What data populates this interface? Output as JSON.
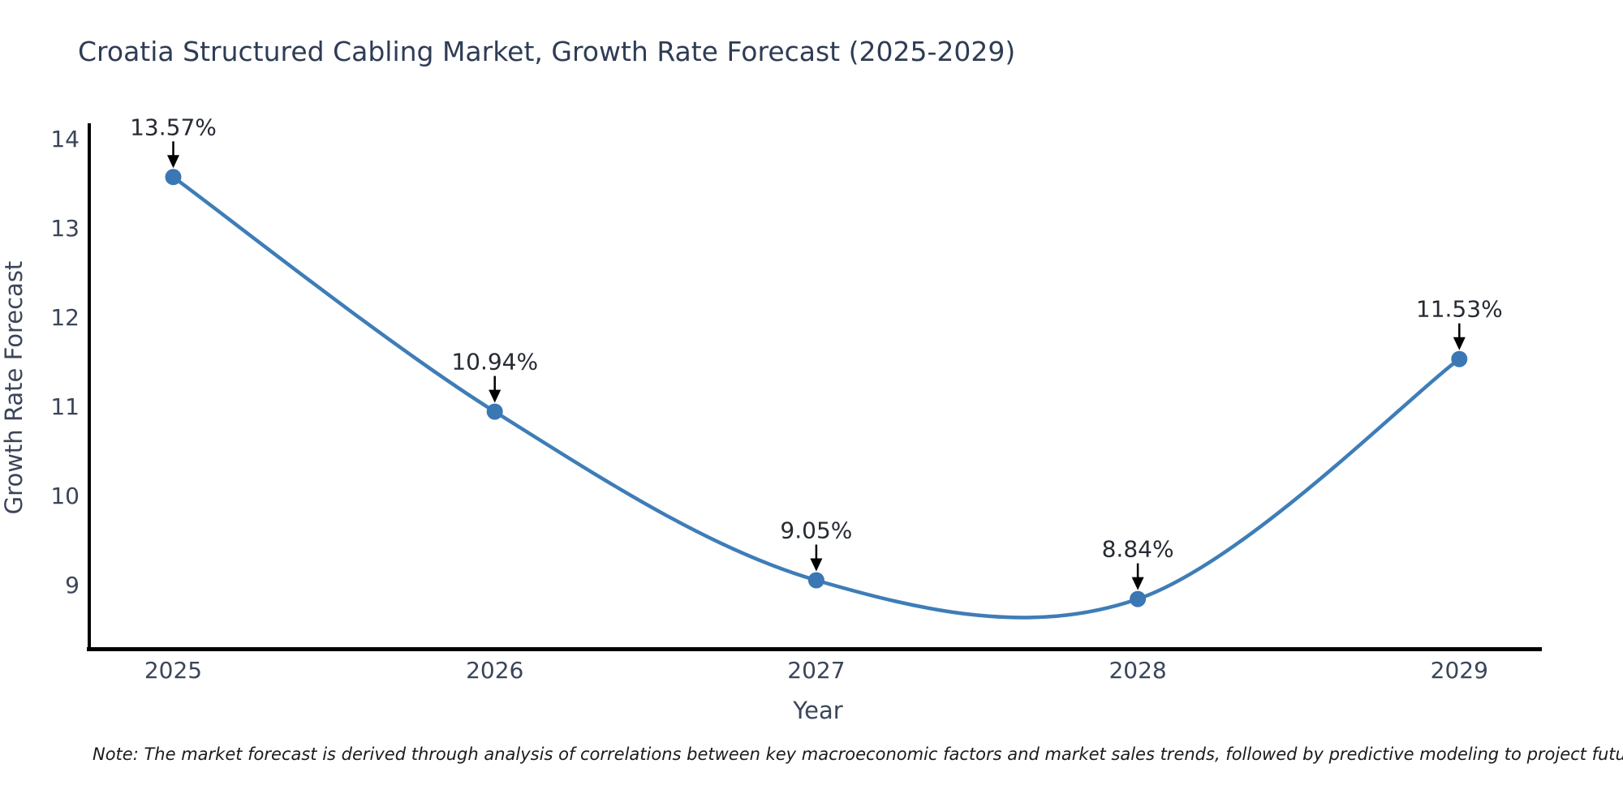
{
  "header": {
    "title": "Croatia Structured Cabling Market, Growth Rate Forecast (2025-2029)"
  },
  "chart_data": {
    "type": "line",
    "x": [
      2025,
      2026,
      2027,
      2028,
      2029
    ],
    "values": [
      13.57,
      10.94,
      9.05,
      8.84,
      11.53
    ],
    "point_labels": [
      "13.57%",
      "10.94%",
      "9.05%",
      "8.84%",
      "11.53%"
    ],
    "title": "Croatia Structured Cabling Market, Growth Rate Forecast (2025-2029)",
    "xlabel": "Year",
    "ylabel": "Growth Rate Forecast",
    "yticks": [
      9,
      10,
      11,
      12,
      13,
      14
    ],
    "ylim": [
      8.26,
      14.16
    ],
    "grid": false,
    "legend": "none",
    "marker": "circle",
    "annotation_arrows": "black, pointing down to each marker",
    "colors": {
      "line": "#3e7db7",
      "marker": "#3a77b3",
      "axis": "#000000",
      "title_text": "#2f3c55",
      "tick_text": "#3a4559",
      "data_label_text": "#262b33",
      "note_text": "#1b1b1b",
      "background": "#ffffff"
    }
  },
  "footnote": {
    "text": "Note: The market forecast is derived through analysis of correlations between key macroeconomic factors and market sales trends, followed by predictive modeling to project future sales."
  }
}
